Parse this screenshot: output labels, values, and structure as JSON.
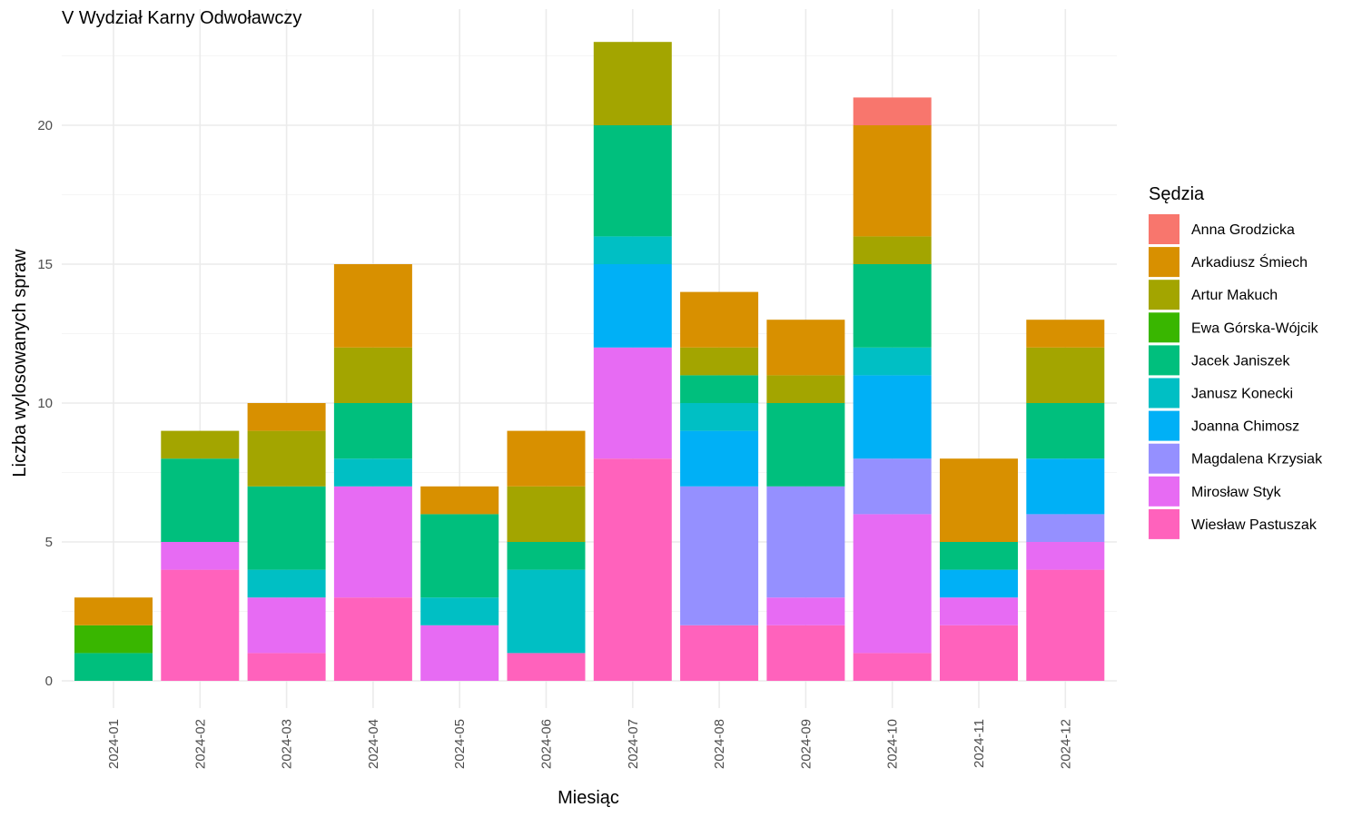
{
  "chart_data": {
    "type": "bar",
    "stacked": true,
    "title": "V Wydział Karny Odwoławczy",
    "xlabel": "Miesiąc",
    "ylabel": "Liczba wylosowanych spraw",
    "ylim": [
      0,
      23.5
    ],
    "y_ticks": [
      0,
      5,
      10,
      15,
      20
    ],
    "grid": true,
    "legend_title": "Sędzia",
    "legend_position": "right",
    "categories": [
      "2024-01",
      "2024-02",
      "2024-03",
      "2024-04",
      "2024-05",
      "2024-06",
      "2024-07",
      "2024-08",
      "2024-09",
      "2024-10",
      "2024-11",
      "2024-12"
    ],
    "series": [
      {
        "name": "Anna Grodzicka",
        "color": "#F8766D",
        "values": [
          0,
          0,
          0,
          0,
          0,
          0,
          0,
          0,
          0,
          1,
          0,
          0
        ]
      },
      {
        "name": "Arkadiusz Śmiech",
        "color": "#D89000",
        "values": [
          1,
          0,
          1,
          3,
          1,
          2,
          0,
          2,
          2,
          4,
          3,
          1
        ]
      },
      {
        "name": "Artur Makuch",
        "color": "#A3A500",
        "values": [
          0,
          1,
          2,
          2,
          0,
          2,
          3,
          1,
          1,
          1,
          0,
          2
        ]
      },
      {
        "name": "Ewa Górska-Wójcik",
        "color": "#39B600",
        "values": [
          1,
          0,
          0,
          0,
          0,
          0,
          0,
          0,
          0,
          0,
          0,
          0
        ]
      },
      {
        "name": "Jacek Janiszek",
        "color": "#00BF7D",
        "values": [
          1,
          3,
          3,
          2,
          3,
          1,
          4,
          1,
          3,
          3,
          1,
          2
        ]
      },
      {
        "name": "Janusz Konecki",
        "color": "#00BFC4",
        "values": [
          0,
          0,
          1,
          1,
          1,
          3,
          1,
          1,
          0,
          1,
          0,
          0
        ]
      },
      {
        "name": "Joanna Chimosz",
        "color": "#00B0F6",
        "values": [
          0,
          0,
          0,
          0,
          0,
          0,
          3,
          2,
          0,
          3,
          1,
          2
        ]
      },
      {
        "name": "Magdalena Krzysiak",
        "color": "#9590FF",
        "values": [
          0,
          0,
          0,
          0,
          0,
          0,
          0,
          5,
          4,
          2,
          0,
          1
        ]
      },
      {
        "name": "Mirosław Styk",
        "color": "#E76BF3",
        "values": [
          0,
          1,
          2,
          4,
          2,
          0,
          4,
          0,
          1,
          5,
          1,
          1
        ]
      },
      {
        "name": "Wiesław Pastuszak",
        "color": "#FF62BC",
        "values": [
          0,
          4,
          1,
          3,
          0,
          1,
          8,
          2,
          2,
          1,
          2,
          4
        ]
      }
    ]
  }
}
